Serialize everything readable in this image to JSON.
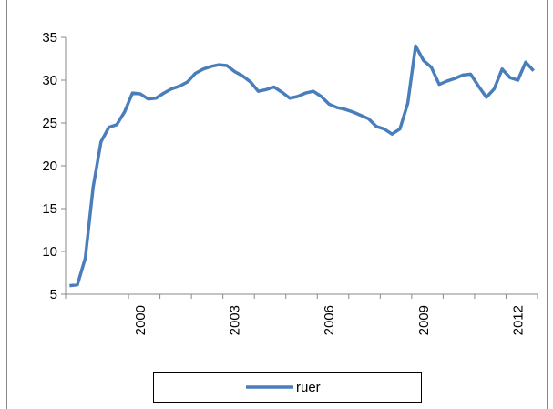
{
  "chart_data": {
    "type": "line",
    "categories": [
      null,
      null,
      null,
      null,
      null,
      null,
      null,
      null,
      null,
      "2000",
      null,
      null,
      null,
      null,
      null,
      null,
      null,
      null,
      null,
      null,
      null,
      "2003",
      null,
      null,
      null,
      null,
      null,
      null,
      null,
      null,
      null,
      null,
      null,
      "2006",
      null,
      null,
      null,
      null,
      null,
      null,
      null,
      null,
      null,
      null,
      null,
      "2009",
      null,
      null,
      null,
      null,
      null,
      null,
      null,
      null,
      null,
      null,
      null,
      "2012",
      null,
      null
    ],
    "series": [
      {
        "name": "ruer",
        "color": "#4a7ebb",
        "values": [
          6.0,
          6.1,
          9.2,
          17.5,
          22.8,
          24.5,
          24.8,
          26.3,
          28.5,
          28.4,
          27.8,
          27.9,
          28.5,
          29.0,
          29.3,
          29.8,
          30.8,
          31.3,
          31.6,
          31.8,
          31.7,
          31.0,
          30.5,
          29.8,
          28.7,
          28.9,
          29.2,
          28.6,
          27.9,
          28.1,
          28.5,
          28.7,
          28.1,
          27.2,
          26.8,
          26.6,
          26.3,
          25.9,
          25.5,
          24.6,
          24.3,
          23.7,
          24.3,
          27.3,
          34.0,
          32.3,
          31.5,
          29.5,
          29.9,
          30.2,
          30.6,
          30.7,
          29.3,
          28.0,
          29.0,
          31.3,
          30.3,
          30.0,
          32.1,
          31.1
        ]
      }
    ],
    "ylim": [
      5,
      35
    ],
    "yticks": [
      5,
      10,
      15,
      20,
      25,
      30,
      35
    ],
    "grid": false,
    "legend": "bottom"
  }
}
